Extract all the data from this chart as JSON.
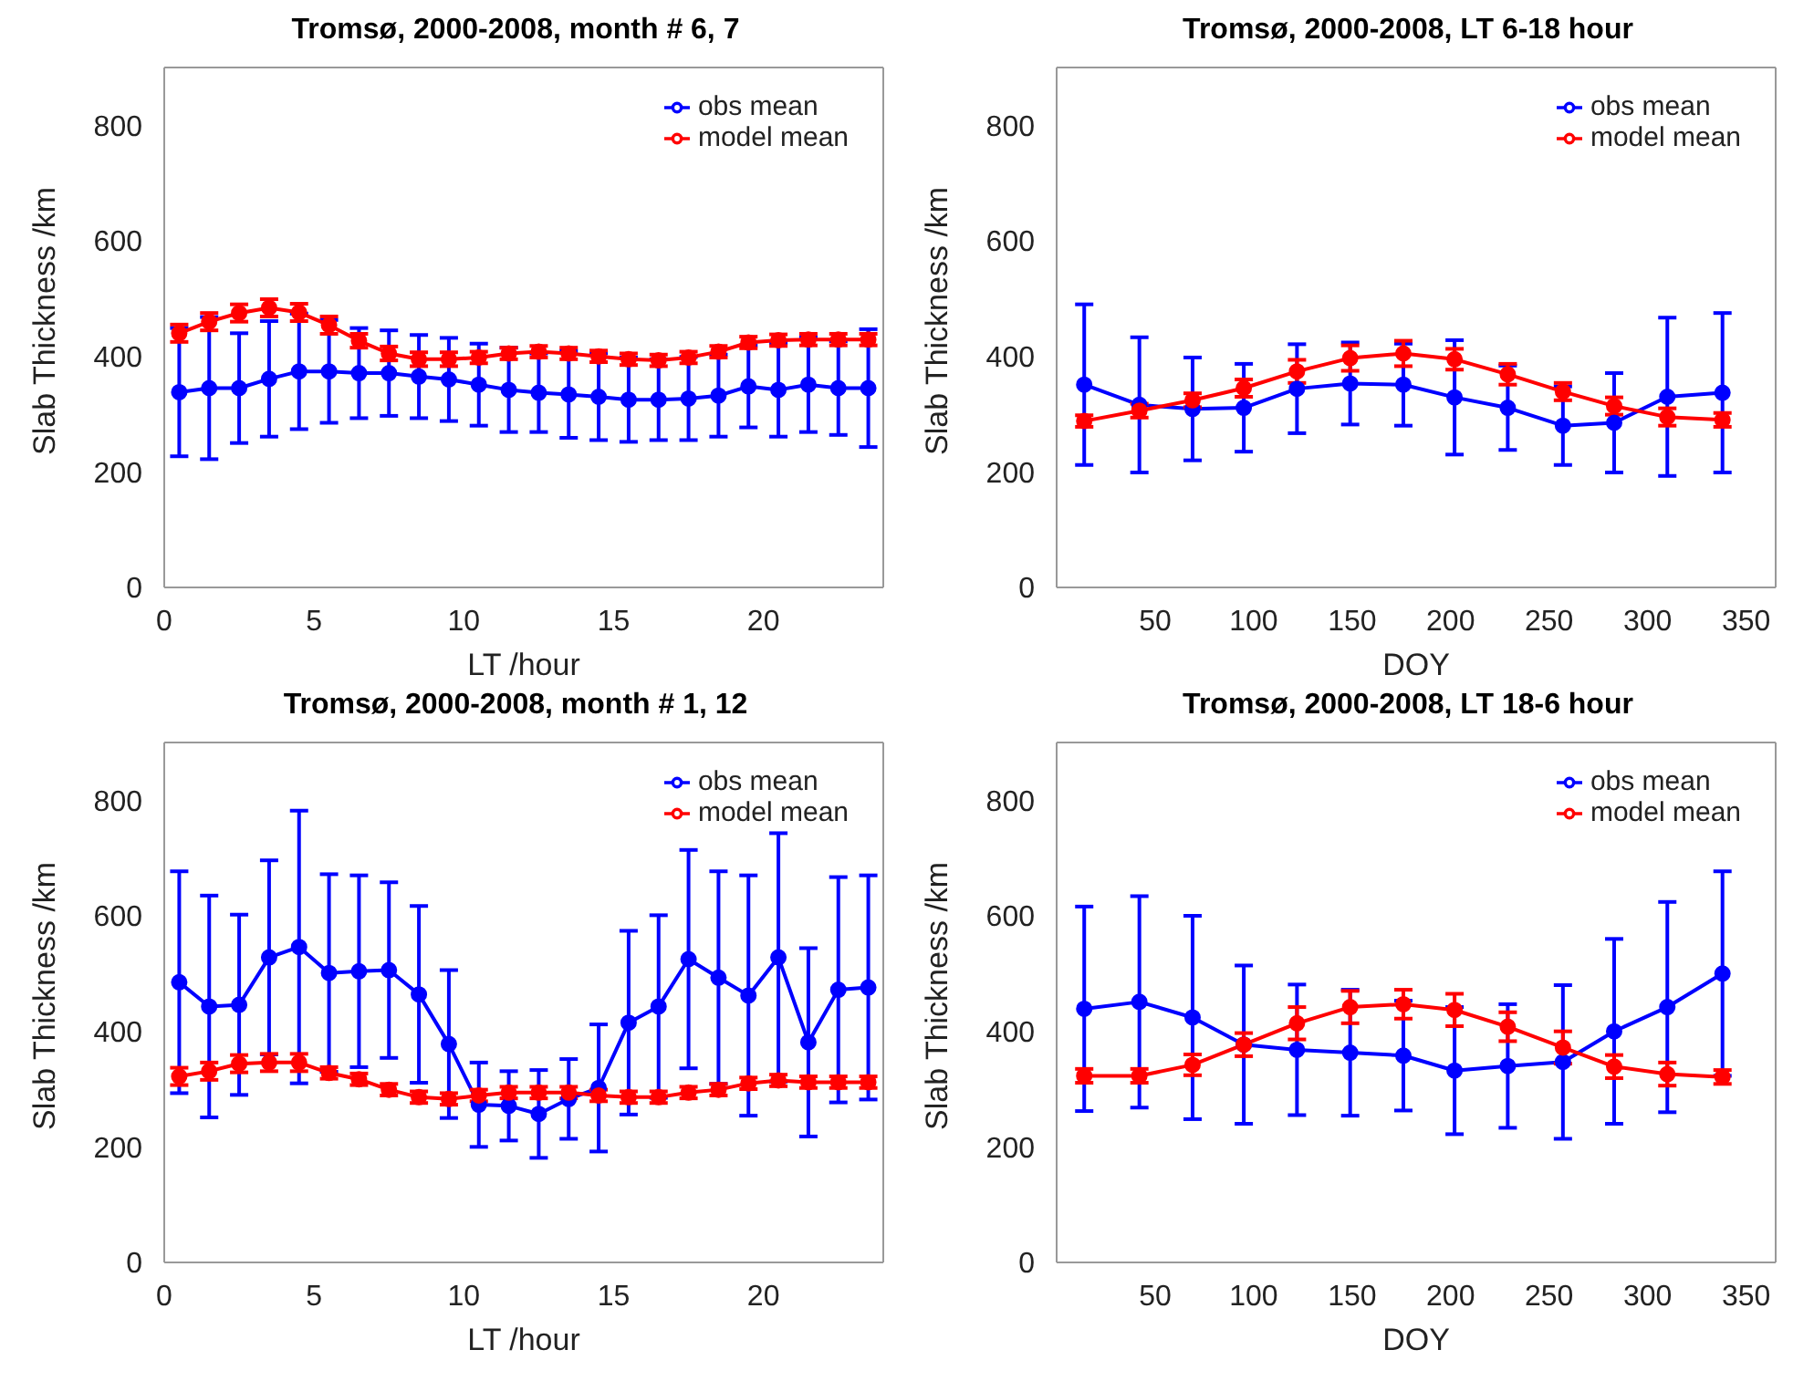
{
  "chart_data": [
    {
      "type": "line",
      "title": "Tromsø, 2000-2008, month # 6, 7",
      "xlabel": "LT /hour",
      "ylabel": "Slab Thickness /km",
      "x": [
        0.5,
        1.5,
        2.5,
        3.5,
        4.5,
        5.5,
        6.5,
        7.5,
        8.5,
        9.5,
        10.5,
        11.5,
        12.5,
        13.5,
        14.5,
        15.5,
        16.5,
        17.5,
        18.5,
        19.5,
        20.5,
        21.5,
        22.5,
        23.5
      ],
      "xlim": [
        0,
        24
      ],
      "xticks": [
        0,
        5,
        10,
        15,
        20
      ],
      "ylim": [
        0,
        900
      ],
      "yticks": [
        0,
        200,
        400,
        600,
        800
      ],
      "grid": false,
      "legend": "top right",
      "marker": "circle",
      "line_style": "solid",
      "series": [
        {
          "name": "obs mean",
          "color": "#0000ff",
          "values": [
            338,
            345,
            345,
            361,
            374,
            374,
            371,
            371,
            365,
            360,
            351,
            342,
            337,
            334,
            330,
            325,
            325,
            327,
            332,
            348,
            342,
            351,
            345,
            345
          ],
          "errors": [
            111,
            123,
            95,
            100,
            100,
            89,
            78,
            74,
            72,
            72,
            71,
            73,
            68,
            75,
            75,
            73,
            70,
            72,
            71,
            71,
            81,
            82,
            81,
            102
          ]
        },
        {
          "name": "model mean",
          "color": "#ff0000",
          "values": [
            440,
            460,
            475,
            484,
            476,
            454,
            427,
            405,
            395,
            395,
            398,
            405,
            408,
            405,
            400,
            395,
            393,
            398,
            408,
            424,
            428,
            429,
            429,
            429
          ],
          "errors": [
            15,
            15,
            15,
            15,
            15,
            15,
            12,
            12,
            12,
            12,
            10,
            10,
            10,
            10,
            10,
            10,
            10,
            10,
            10,
            10,
            10,
            10,
            10,
            10
          ]
        }
      ]
    },
    {
      "type": "line",
      "title": "Tromsø, 2000-2008, LT 6-18 hour",
      "xlabel": "DOY",
      "ylabel": "Slab Thickness /km",
      "x": [
        14,
        42,
        69,
        95,
        122,
        149,
        176,
        202,
        229,
        257,
        283,
        310,
        338
      ],
      "xlim": [
        0,
        365
      ],
      "xticks": [
        50,
        100,
        150,
        200,
        250,
        300,
        350
      ],
      "ylim": [
        0,
        900
      ],
      "yticks": [
        0,
        200,
        400,
        600,
        800
      ],
      "grid": false,
      "legend": "top right",
      "marker": "circle",
      "line_style": "solid",
      "series": [
        {
          "name": "obs mean",
          "color": "#0000ff",
          "values": [
            351,
            316,
            309,
            311,
            344,
            353,
            351,
            329,
            311,
            280,
            285,
            330,
            337
          ],
          "errors": [
            139,
            117,
            89,
            76,
            77,
            71,
            71,
            99,
            73,
            68,
            86,
            137,
            138
          ]
        },
        {
          "name": "model mean",
          "color": "#ff0000",
          "values": [
            288,
            306,
            324,
            345,
            374,
            397,
            405,
            395,
            369,
            339,
            314,
            295,
            290
          ],
          "errors": [
            10,
            12,
            12,
            15,
            20,
            22,
            22,
            18,
            18,
            15,
            15,
            15,
            12
          ]
        }
      ]
    },
    {
      "type": "line",
      "title": "Tromsø, 2000-2008, month # 1, 12",
      "xlabel": "LT /hour",
      "ylabel": "Slab Thickness /km",
      "x": [
        0.5,
        1.5,
        2.5,
        3.5,
        4.5,
        5.5,
        6.5,
        7.5,
        8.5,
        9.5,
        10.5,
        11.5,
        12.5,
        13.5,
        14.5,
        15.5,
        16.5,
        17.5,
        18.5,
        19.5,
        20.5,
        21.5,
        22.5,
        23.5
      ],
      "xlim": [
        0,
        24
      ],
      "xticks": [
        0,
        5,
        10,
        15,
        20
      ],
      "ylim": [
        0,
        900
      ],
      "yticks": [
        0,
        200,
        400,
        600,
        800
      ],
      "grid": false,
      "legend": "top right",
      "marker": "circle",
      "line_style": "solid",
      "series": [
        {
          "name": "obs mean",
          "color": "#0000ff",
          "values": [
            485,
            443,
            446,
            528,
            546,
            501,
            504,
            506,
            464,
            378,
            273,
            271,
            257,
            283,
            302,
            415,
            443,
            525,
            493,
            462,
            528,
            381,
            472,
            476
          ],
          "errors": [
            192,
            192,
            156,
            168,
            236,
            171,
            166,
            152,
            153,
            128,
            73,
            60,
            76,
            69,
            110,
            159,
            158,
            189,
            184,
            208,
            215,
            163,
            195,
            194
          ]
        },
        {
          "name": "model mean",
          "color": "#ff0000",
          "values": [
            322,
            331,
            344,
            346,
            346,
            328,
            317,
            299,
            286,
            283,
            289,
            294,
            294,
            294,
            289,
            286,
            286,
            294,
            299,
            310,
            315,
            312,
            312,
            312
          ],
          "errors": [
            15,
            15,
            15,
            15,
            15,
            10,
            10,
            10,
            10,
            10,
            10,
            10,
            10,
            10,
            10,
            10,
            10,
            10,
            10,
            10,
            10,
            10,
            10,
            10
          ]
        }
      ]
    },
    {
      "type": "line",
      "title": "Tromsø, 2000-2008, LT 18-6 hour",
      "xlabel": "DOY",
      "ylabel": "Slab Thickness /km",
      "x": [
        14,
        42,
        69,
        95,
        122,
        149,
        176,
        202,
        229,
        257,
        283,
        310,
        338
      ],
      "xlim": [
        0,
        365
      ],
      "xticks": [
        50,
        100,
        150,
        200,
        250,
        300,
        350
      ],
      "ylim": [
        0,
        900
      ],
      "yticks": [
        0,
        200,
        400,
        600,
        800
      ],
      "grid": false,
      "legend": "top right",
      "marker": "circle",
      "line_style": "solid",
      "series": [
        {
          "name": "obs mean",
          "color": "#0000ff",
          "values": [
            439,
            451,
            424,
            377,
            368,
            363,
            358,
            332,
            340,
            347,
            400,
            442,
            500
          ],
          "errors": [
            177,
            183,
            176,
            137,
            113,
            109,
            95,
            110,
            107,
            133,
            160,
            182,
            177
          ]
        },
        {
          "name": "model mean",
          "color": "#ff0000",
          "values": [
            323,
            323,
            342,
            377,
            414,
            442,
            447,
            437,
            408,
            372,
            339,
            326,
            321
          ],
          "errors": [
            12,
            12,
            18,
            20,
            28,
            28,
            25,
            28,
            25,
            28,
            20,
            20,
            12
          ]
        }
      ]
    }
  ]
}
